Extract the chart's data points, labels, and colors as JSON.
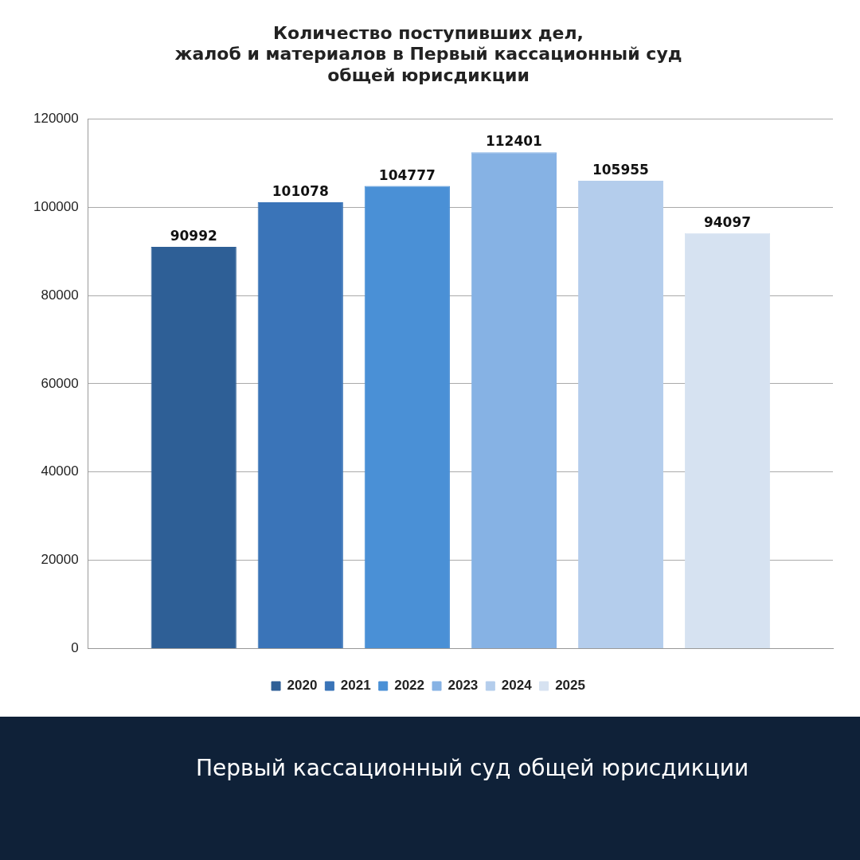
{
  "chart_data": {
    "type": "bar",
    "title": [
      "Количество поступивших дел,",
      "жалоб и материалов в Первый кассационный суд",
      "общей юрисдикции"
    ],
    "categories": [
      null
    ],
    "series": [
      {
        "name": "2020",
        "color": "#2e5f96",
        "values": [
          90992
        ]
      },
      {
        "name": "2021",
        "color": "#3a74b8",
        "values": [
          101078
        ]
      },
      {
        "name": "2022",
        "color": "#4a90d6",
        "values": [
          104777
        ]
      },
      {
        "name": "2023",
        "color": "#86b2e4",
        "values": [
          112401
        ]
      },
      {
        "name": "2024",
        "color": "#b4cdec",
        "values": [
          105955
        ]
      },
      {
        "name": "2025",
        "color": "#d6e2f1",
        "values": [
          94097
        ]
      }
    ],
    "ylim": [
      0,
      120000
    ],
    "yticks": [
      0,
      20000,
      40000,
      60000,
      80000,
      100000,
      120000
    ],
    "grid": "y",
    "legend": "bottom",
    "data_labels": true,
    "annotations": [
      "Первый кассационный суд общей юрисдикции"
    ]
  }
}
